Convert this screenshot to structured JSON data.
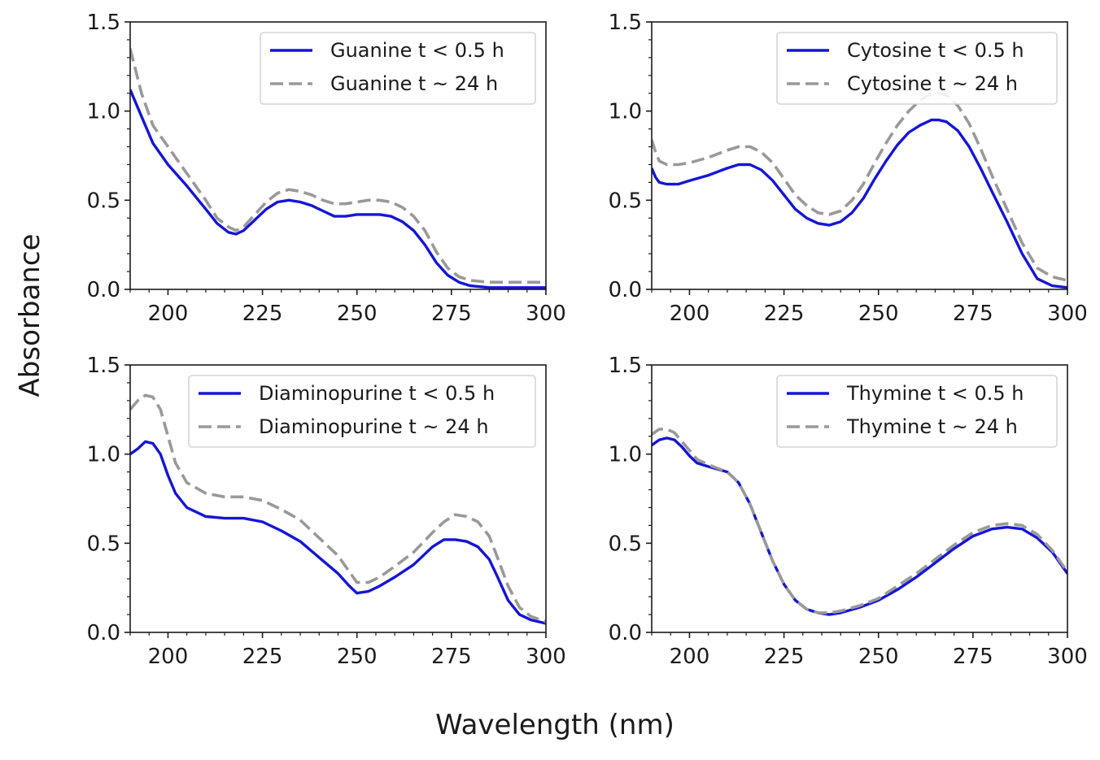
{
  "figure": {
    "xlabel": "Wavelength (nm)",
    "ylabel": "Absorbance"
  },
  "chart_data": [
    {
      "type": "line",
      "xlim": [
        190,
        300
      ],
      "ylim": [
        0,
        1.5
      ],
      "xticks": [
        200,
        225,
        250,
        275,
        300
      ],
      "yticks": [
        0.0,
        0.5,
        1.0,
        1.5
      ],
      "x_tick_labels": [
        "200",
        "225",
        "250",
        "275",
        "300"
      ],
      "y_tick_labels": [
        "0.0",
        "0.5",
        "1.0",
        "1.5"
      ],
      "legend_position": "top-right",
      "series": [
        {
          "name": "Guanine t < 0.5 h",
          "color": "#1515d6",
          "dash": "solid",
          "x": [
            190,
            193,
            196,
            200,
            205,
            210,
            213,
            216,
            218,
            220,
            223,
            226,
            229,
            232,
            235,
            238,
            241,
            244,
            247,
            250,
            253,
            256,
            259,
            262,
            265,
            268,
            271,
            274,
            277,
            280,
            285,
            290,
            300
          ],
          "y": [
            1.12,
            0.97,
            0.82,
            0.7,
            0.58,
            0.45,
            0.37,
            0.32,
            0.31,
            0.33,
            0.39,
            0.45,
            0.49,
            0.5,
            0.49,
            0.47,
            0.44,
            0.41,
            0.41,
            0.42,
            0.42,
            0.42,
            0.41,
            0.38,
            0.33,
            0.25,
            0.15,
            0.08,
            0.04,
            0.02,
            0.01,
            0.01,
            0.01
          ]
        },
        {
          "name": "Guanine t ~ 24 h",
          "color": "#999999",
          "dash": "dashed",
          "x": [
            190,
            193,
            196,
            200,
            205,
            210,
            213,
            216,
            218,
            220,
            223,
            226,
            229,
            232,
            235,
            238,
            241,
            244,
            247,
            250,
            253,
            256,
            259,
            262,
            265,
            268,
            271,
            274,
            277,
            280,
            285,
            290,
            300
          ],
          "y": [
            1.35,
            1.1,
            0.92,
            0.8,
            0.65,
            0.5,
            0.4,
            0.35,
            0.33,
            0.35,
            0.42,
            0.49,
            0.54,
            0.56,
            0.55,
            0.53,
            0.5,
            0.48,
            0.48,
            0.49,
            0.5,
            0.5,
            0.49,
            0.46,
            0.41,
            0.33,
            0.21,
            0.12,
            0.07,
            0.05,
            0.04,
            0.04,
            0.04
          ]
        }
      ]
    },
    {
      "type": "line",
      "xlim": [
        190,
        300
      ],
      "ylim": [
        0,
        1.5
      ],
      "xticks": [
        200,
        225,
        250,
        275,
        300
      ],
      "yticks": [
        0.0,
        0.5,
        1.0,
        1.5
      ],
      "x_tick_labels": [
        "200",
        "225",
        "250",
        "275",
        "300"
      ],
      "y_tick_labels": [
        "0.0",
        "0.5",
        "1.0",
        "1.5"
      ],
      "legend_position": "top-right",
      "series": [
        {
          "name": "Cytosine t < 0.5 h",
          "color": "#1515d6",
          "dash": "solid",
          "x": [
            190,
            191,
            192,
            194,
            197,
            200,
            205,
            210,
            213,
            216,
            219,
            222,
            225,
            228,
            231,
            234,
            237,
            240,
            243,
            246,
            249,
            252,
            255,
            258,
            261,
            264,
            266,
            268,
            271,
            274,
            277,
            280,
            284,
            288,
            292,
            296,
            300
          ],
          "y": [
            0.68,
            0.63,
            0.6,
            0.59,
            0.59,
            0.61,
            0.64,
            0.68,
            0.7,
            0.7,
            0.67,
            0.61,
            0.53,
            0.45,
            0.4,
            0.37,
            0.36,
            0.38,
            0.43,
            0.51,
            0.62,
            0.72,
            0.81,
            0.88,
            0.92,
            0.95,
            0.95,
            0.94,
            0.89,
            0.8,
            0.68,
            0.55,
            0.38,
            0.2,
            0.06,
            0.02,
            0.01
          ]
        },
        {
          "name": "Cytosine t ~ 24 h",
          "color": "#999999",
          "dash": "dashed",
          "x": [
            190,
            191,
            192,
            194,
            197,
            200,
            205,
            210,
            213,
            216,
            219,
            222,
            225,
            228,
            231,
            234,
            237,
            240,
            243,
            246,
            249,
            252,
            255,
            258,
            261,
            264,
            266,
            268,
            271,
            274,
            277,
            280,
            284,
            288,
            292,
            296,
            300
          ],
          "y": [
            0.84,
            0.77,
            0.72,
            0.7,
            0.7,
            0.71,
            0.74,
            0.78,
            0.8,
            0.8,
            0.77,
            0.71,
            0.62,
            0.53,
            0.47,
            0.43,
            0.42,
            0.44,
            0.5,
            0.59,
            0.71,
            0.82,
            0.92,
            1.0,
            1.06,
            1.1,
            1.1,
            1.09,
            1.03,
            0.93,
            0.79,
            0.64,
            0.45,
            0.26,
            0.12,
            0.07,
            0.05
          ]
        }
      ]
    },
    {
      "type": "line",
      "xlim": [
        190,
        300
      ],
      "ylim": [
        0,
        1.5
      ],
      "xticks": [
        200,
        225,
        250,
        275,
        300
      ],
      "yticks": [
        0.0,
        0.5,
        1.0,
        1.5
      ],
      "x_tick_labels": [
        "200",
        "225",
        "250",
        "275",
        "300"
      ],
      "y_tick_labels": [
        "0.0",
        "0.5",
        "1.0",
        "1.5"
      ],
      "legend_position": "top-right",
      "series": [
        {
          "name": "Diaminopurine t < 0.5 h",
          "color": "#1515d6",
          "dash": "solid",
          "x": [
            190,
            192,
            194,
            196,
            198,
            200,
            202,
            205,
            210,
            215,
            220,
            225,
            230,
            235,
            240,
            245,
            248,
            250,
            253,
            256,
            260,
            265,
            270,
            273,
            276,
            279,
            282,
            285,
            287,
            290,
            293,
            296,
            300
          ],
          "y": [
            1.0,
            1.03,
            1.07,
            1.06,
            1.0,
            0.88,
            0.78,
            0.7,
            0.65,
            0.64,
            0.64,
            0.62,
            0.57,
            0.51,
            0.42,
            0.33,
            0.26,
            0.22,
            0.23,
            0.26,
            0.31,
            0.38,
            0.48,
            0.52,
            0.52,
            0.51,
            0.48,
            0.41,
            0.32,
            0.18,
            0.1,
            0.07,
            0.05
          ]
        },
        {
          "name": "Diaminopurine t ~ 24 h",
          "color": "#999999",
          "dash": "dashed",
          "x": [
            190,
            192,
            194,
            196,
            198,
            200,
            202,
            205,
            210,
            215,
            220,
            225,
            230,
            235,
            240,
            245,
            248,
            250,
            253,
            256,
            260,
            265,
            270,
            273,
            276,
            279,
            282,
            285,
            287,
            290,
            293,
            296,
            300
          ],
          "y": [
            1.25,
            1.3,
            1.33,
            1.32,
            1.25,
            1.1,
            0.95,
            0.84,
            0.78,
            0.76,
            0.76,
            0.74,
            0.69,
            0.63,
            0.53,
            0.43,
            0.34,
            0.28,
            0.28,
            0.31,
            0.37,
            0.45,
            0.56,
            0.62,
            0.66,
            0.65,
            0.62,
            0.54,
            0.43,
            0.26,
            0.14,
            0.09,
            0.06
          ]
        }
      ]
    },
    {
      "type": "line",
      "xlim": [
        190,
        300
      ],
      "ylim": [
        0,
        1.5
      ],
      "xticks": [
        200,
        225,
        250,
        275,
        300
      ],
      "yticks": [
        0.0,
        0.5,
        1.0,
        1.5
      ],
      "x_tick_labels": [
        "200",
        "225",
        "250",
        "275",
        "300"
      ],
      "y_tick_labels": [
        "0.0",
        "0.5",
        "1.0",
        "1.5"
      ],
      "legend_position": "top-right",
      "series": [
        {
          "name": "Thymine t < 0.5 h",
          "color": "#1515d6",
          "dash": "solid",
          "x": [
            190,
            192,
            194,
            196,
            198,
            200,
            202,
            205,
            210,
            213,
            216,
            219,
            222,
            225,
            228,
            231,
            234,
            237,
            240,
            245,
            250,
            255,
            260,
            265,
            270,
            275,
            280,
            284,
            288,
            292,
            296,
            300
          ],
          "y": [
            1.05,
            1.08,
            1.09,
            1.08,
            1.04,
            0.99,
            0.95,
            0.93,
            0.9,
            0.84,
            0.72,
            0.56,
            0.4,
            0.27,
            0.18,
            0.13,
            0.11,
            0.1,
            0.11,
            0.14,
            0.18,
            0.24,
            0.31,
            0.39,
            0.47,
            0.54,
            0.58,
            0.59,
            0.58,
            0.53,
            0.45,
            0.33
          ]
        },
        {
          "name": "Thymine t ~ 24 h",
          "color": "#999999",
          "dash": "dashed",
          "x": [
            190,
            192,
            194,
            196,
            198,
            200,
            202,
            205,
            210,
            213,
            216,
            219,
            222,
            225,
            228,
            231,
            234,
            237,
            240,
            245,
            250,
            255,
            260,
            265,
            270,
            275,
            280,
            284,
            288,
            292,
            296,
            300
          ],
          "y": [
            1.11,
            1.14,
            1.14,
            1.12,
            1.07,
            1.02,
            0.97,
            0.94,
            0.9,
            0.84,
            0.72,
            0.56,
            0.4,
            0.27,
            0.18,
            0.13,
            0.11,
            0.11,
            0.12,
            0.15,
            0.19,
            0.26,
            0.33,
            0.41,
            0.49,
            0.56,
            0.6,
            0.61,
            0.6,
            0.55,
            0.46,
            0.34
          ]
        }
      ]
    }
  ]
}
